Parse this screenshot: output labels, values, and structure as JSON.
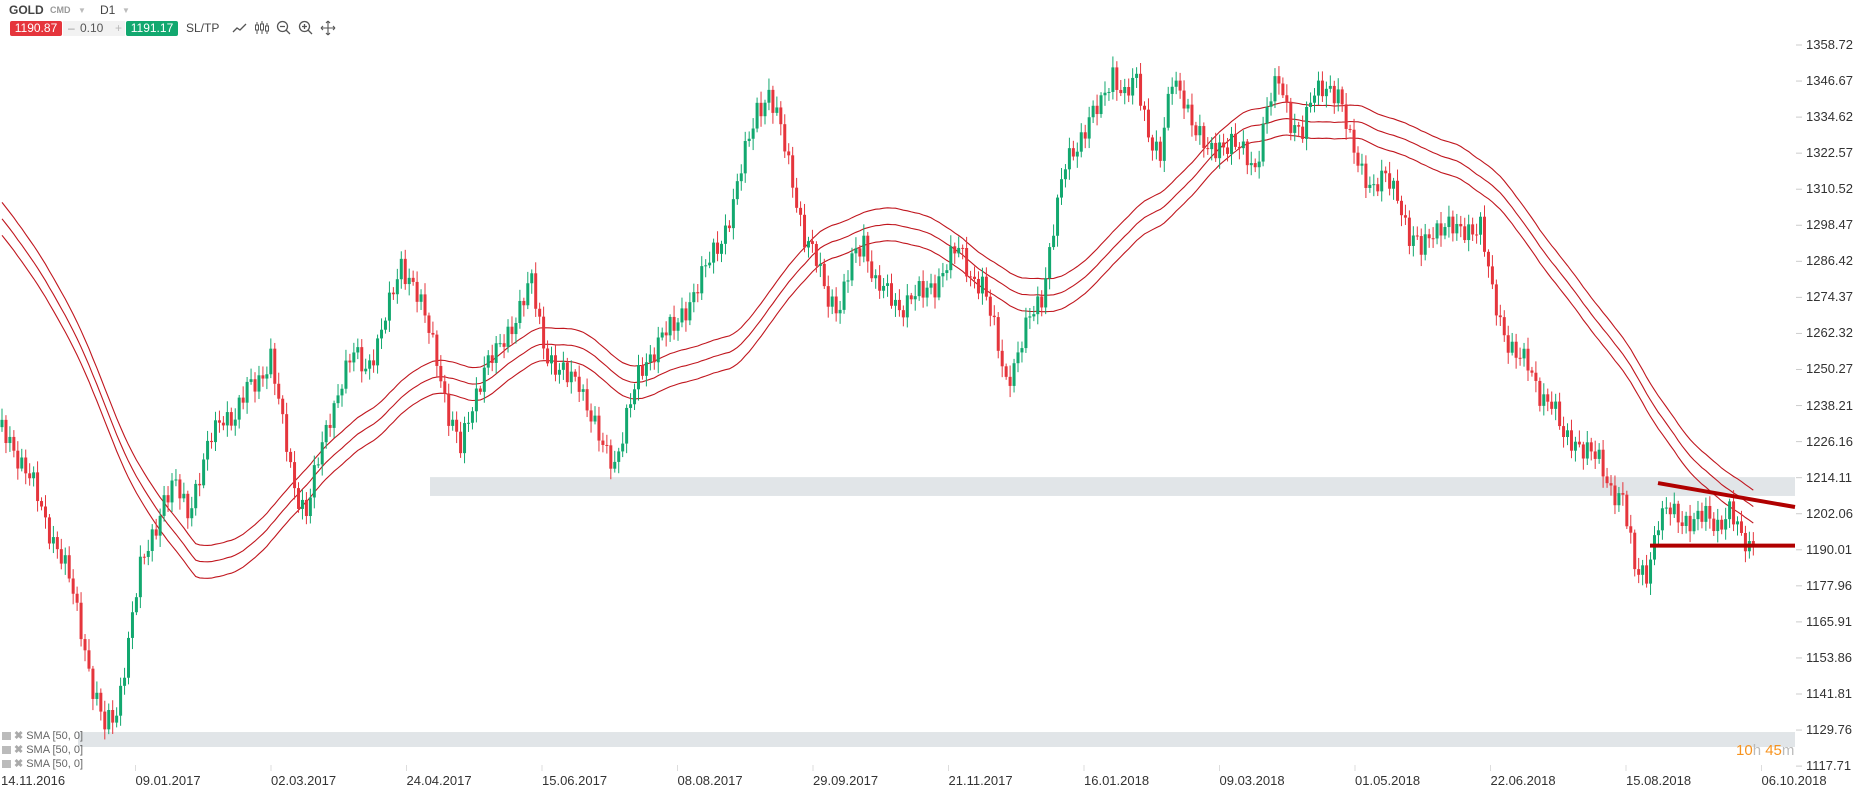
{
  "toolbar": {
    "symbol": "GOLD",
    "type": "CMD",
    "timeframe": "D1",
    "sell_price": "1190.87",
    "volume": "0.10",
    "minus": "–",
    "plus": "+",
    "buy_price": "1191.17",
    "sltp_label": "SL/TP",
    "icons": [
      "line-chart-icon",
      "candles-icon",
      "zoom-out-icon",
      "zoom-in-icon",
      "crosshair-move-icon"
    ]
  },
  "indicators": [
    {
      "label": "SMA [50, 0]"
    },
    {
      "label": "SMA [50, 0]"
    },
    {
      "label": "SMA [50, 0]"
    }
  ],
  "timer": {
    "hours": "10",
    "h": "h",
    "minutes": "45",
    "m": "m"
  },
  "colors": {
    "up": "#12a86f",
    "down": "#e5353c",
    "sma": "#c0161e",
    "trendline": "#b00000",
    "zone": "#e1e5e8",
    "timer": "#f7931e"
  },
  "chart_data": {
    "type": "candlestick",
    "instrument": "GOLD",
    "timeframe": "D1",
    "y_ticks": [
      "1358.72",
      "1346.67",
      "1334.62",
      "1322.57",
      "1310.52",
      "1298.47",
      "1286.42",
      "1274.37",
      "1262.32",
      "1250.27",
      "1238.21",
      "1226.16",
      "1214.11",
      "1202.06",
      "1190.01",
      "1177.96",
      "1165.91",
      "1153.86",
      "1141.81",
      "1129.76",
      "1117.71"
    ],
    "ylim": [
      1117.71,
      1358.72
    ],
    "x_ticks": [
      "14.11.2016",
      "09.01.2017",
      "02.03.2017",
      "24.04.2017",
      "15.06.2017",
      "08.08.2017",
      "29.09.2017",
      "21.11.2017",
      "16.01.2018",
      "09.03.2018",
      "01.05.2018",
      "22.06.2018",
      "15.08.2018",
      "06.10.2018"
    ],
    "approx_closes": [
      1227,
      1219,
      1211,
      1200,
      1191,
      1180,
      1164,
      1144,
      1130,
      1136,
      1160,
      1183,
      1195,
      1207,
      1211,
      1203,
      1215,
      1227,
      1235,
      1235,
      1243,
      1247,
      1255,
      1231,
      1211,
      1203,
      1219,
      1235,
      1247,
      1255,
      1251,
      1259,
      1271,
      1286,
      1279,
      1267,
      1255,
      1235,
      1223,
      1239,
      1251,
      1255,
      1263,
      1271,
      1279,
      1259,
      1251,
      1247,
      1247,
      1235,
      1223,
      1219,
      1235,
      1247,
      1255,
      1263,
      1263,
      1271,
      1279,
      1286,
      1294,
      1306,
      1322,
      1338,
      1342,
      1330,
      1314,
      1294,
      1286,
      1275,
      1271,
      1286,
      1294,
      1279,
      1275,
      1271,
      1275,
      1275,
      1279,
      1286,
      1290,
      1282,
      1279,
      1263,
      1247,
      1255,
      1267,
      1275,
      1298,
      1318,
      1326,
      1334,
      1338,
      1350,
      1342,
      1346,
      1330,
      1322,
      1346,
      1342,
      1330,
      1322,
      1326,
      1326,
      1322,
      1318,
      1338,
      1346,
      1334,
      1330,
      1342,
      1346,
      1342,
      1326,
      1318,
      1310,
      1314,
      1310,
      1294,
      1290,
      1298,
      1298,
      1296,
      1298,
      1298,
      1275,
      1263,
      1255,
      1251,
      1243,
      1239,
      1227,
      1227,
      1223,
      1219,
      1211,
      1207,
      1183,
      1183,
      1199,
      1203,
      1201,
      1199,
      1201,
      1199,
      1203,
      1193,
      1190.87
    ],
    "indicators": [
      "SMA 50 (upper)",
      "SMA 50",
      "SMA 50 (lower)"
    ],
    "zones": [
      {
        "from": 1208.0,
        "to": 1214.3
      },
      {
        "from": 1124.1,
        "to": 1129.1
      }
    ],
    "trendlines": [
      {
        "kind": "horizontal",
        "price": 1191.4
      },
      {
        "kind": "descending",
        "start_price": 1212.3,
        "end_price": 1204.3
      }
    ],
    "grid": false
  }
}
